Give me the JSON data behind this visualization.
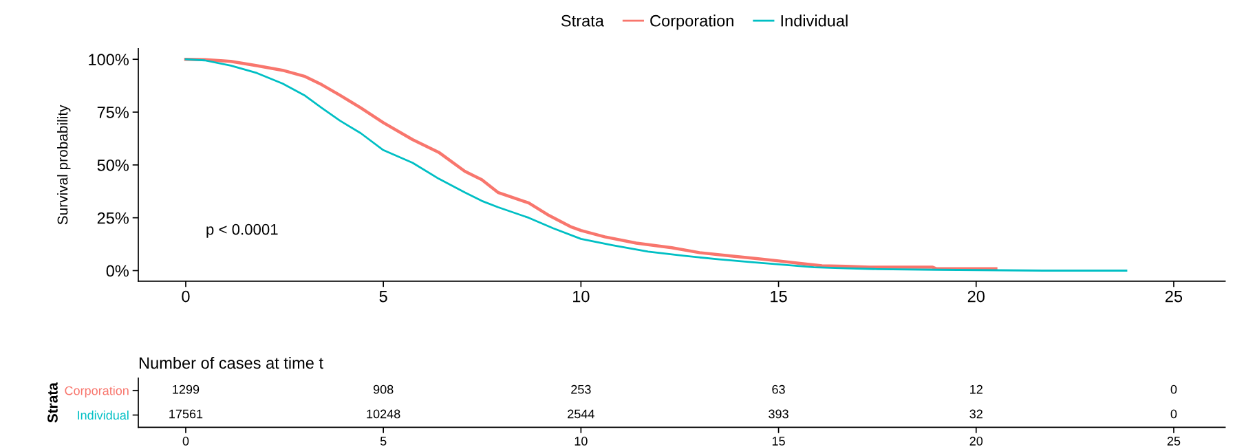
{
  "chart_data": [
    {
      "type": "line",
      "ylabel": "Survival probability",
      "legend_title": "Strata",
      "legend": "top",
      "grid": false,
      "line_style": "solid",
      "marker": "none",
      "series": [
        {
          "name": "Corporation",
          "color": "#f8766d",
          "x": [
            0,
            0.5,
            1.14,
            1.8,
            2.45,
            3.0,
            3.44,
            3.9,
            4.43,
            5.0,
            5.74,
            6.4,
            7.06,
            7.49,
            7.9,
            8.68,
            9.2,
            9.76,
            10.0,
            10.6,
            11.4,
            12.3,
            13.0,
            13.8,
            14.4,
            15.0,
            15.5,
            16.1,
            16.7,
            17.3,
            18.9,
            19.0,
            20.5
          ],
          "values": [
            100,
            99.8,
            99,
            97,
            94.8,
            92,
            88,
            83,
            77,
            70,
            62,
            56,
            47,
            43,
            37,
            32,
            26,
            20.6,
            19,
            16,
            13,
            10.8,
            8.5,
            6.9,
            5.8,
            4.6,
            3.5,
            2.3,
            2,
            1.6,
            1.6,
            0.9,
            0.9
          ]
        },
        {
          "name": "Individual",
          "color": "#00bfc4",
          "x": [
            0,
            0.48,
            1.14,
            1.8,
            2.45,
            3.0,
            3.44,
            3.9,
            4.43,
            5.0,
            5.74,
            6.4,
            7.06,
            7.49,
            7.9,
            8.68,
            9.3,
            10.0,
            10.8,
            11.7,
            12.6,
            13.5,
            14.3,
            15.0,
            15.9,
            16.7,
            17.5,
            19.0,
            21.7,
            23.8
          ],
          "values": [
            100,
            99.5,
            97,
            93.5,
            88.5,
            83,
            77,
            71,
            65,
            57,
            51,
            43.5,
            37,
            33,
            30,
            25,
            20,
            15,
            12,
            9,
            7,
            5.3,
            4,
            3,
            1.6,
            1.1,
            0.7,
            0.4,
            0,
            0
          ]
        }
      ],
      "xlim": [
        -1.2,
        26.3
      ],
      "xticks": [
        0,
        5,
        10,
        15,
        20,
        25
      ],
      "ylim": [
        -5,
        105
      ],
      "yticks": [
        {
          "value": 0,
          "label": "0%"
        },
        {
          "value": 25,
          "label": "25%"
        },
        {
          "value": 50,
          "label": "50%"
        },
        {
          "value": 75,
          "label": "75%"
        },
        {
          "value": 100,
          "label": "100%"
        }
      ],
      "annotations": [
        "p < 0.0001"
      ]
    },
    {
      "type": "heatmap",
      "title": "Number of cases at time t",
      "ylabel": "Strata",
      "data_labels": true,
      "categories": [
        "0",
        "5",
        "10",
        "15",
        "20",
        "25"
      ],
      "y_categories": [
        "Corporation",
        "Individual"
      ],
      "colors": [
        "#f8766d",
        "#00bfc4"
      ],
      "cells": [
        [
          1299,
          908,
          253,
          63,
          12,
          0
        ],
        [
          17561,
          10248,
          2544,
          393,
          32,
          0
        ]
      ]
    }
  ]
}
